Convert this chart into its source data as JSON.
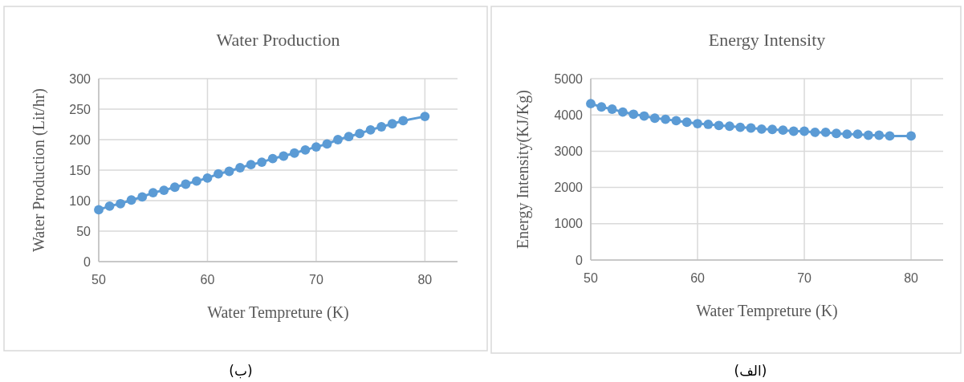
{
  "chart_data": [
    {
      "type": "line",
      "title": "Water Production",
      "xlabel": "Water Tempreture (K)",
      "ylabel": "Water Production (Lit/hr)",
      "annotations": [
        "(ب)"
      ],
      "x": [
        50,
        51,
        52,
        53,
        54,
        55,
        56,
        57,
        58,
        59,
        60,
        61,
        62,
        63,
        64,
        65,
        66,
        67,
        68,
        69,
        70,
        71,
        72,
        73,
        74,
        75,
        76,
        77,
        78,
        80
      ],
      "series": [
        {
          "color": "#5b9bd5",
          "values": [
            85,
            91,
            95,
            101,
            106,
            113,
            117,
            122,
            127,
            132,
            137,
            144,
            148,
            154,
            159,
            163,
            169,
            173,
            178,
            183,
            188,
            193,
            200,
            205,
            210,
            216,
            221,
            226,
            231,
            238
          ]
        }
      ],
      "xlim": [
        50,
        83
      ],
      "xticks": [
        50,
        60,
        70,
        80
      ],
      "ylim": [
        0,
        300
      ],
      "yticks": [
        0,
        50,
        100,
        150,
        200,
        250,
        300
      ],
      "grid": true,
      "marker": "circle",
      "line_style": "solid"
    },
    {
      "type": "line",
      "title": "Energy Intensity",
      "xlabel": "Water Tempreture (K)",
      "ylabel": "Energy Intensity(KJ/Kg)",
      "annotations": [
        "(الف)"
      ],
      "x": [
        50,
        51,
        52,
        53,
        54,
        55,
        56,
        57,
        58,
        59,
        60,
        61,
        62,
        63,
        64,
        65,
        66,
        67,
        68,
        69,
        70,
        71,
        72,
        73,
        74,
        75,
        76,
        77,
        78,
        80
      ],
      "series": [
        {
          "color": "#5b9bd5",
          "values": [
            4310,
            4220,
            4160,
            4080,
            4020,
            3970,
            3910,
            3880,
            3840,
            3800,
            3760,
            3740,
            3710,
            3690,
            3660,
            3640,
            3610,
            3600,
            3580,
            3550,
            3550,
            3520,
            3520,
            3490,
            3470,
            3470,
            3440,
            3440,
            3420,
            3420
          ]
        }
      ],
      "xlim": [
        50,
        83
      ],
      "xticks": [
        50,
        60,
        70,
        80
      ],
      "ylim": [
        0,
        5000
      ],
      "yticks": [
        0,
        1000,
        2000,
        3000,
        4000,
        5000
      ],
      "grid": true,
      "marker": "circle",
      "line_style": "solid"
    }
  ]
}
